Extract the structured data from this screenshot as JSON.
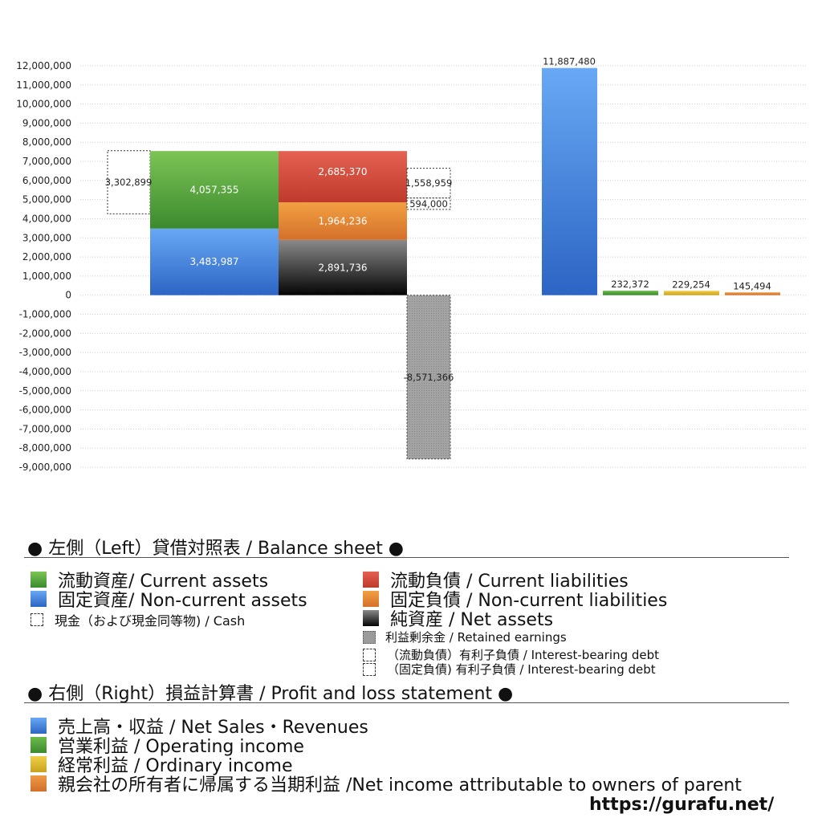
{
  "chart_data": {
    "type": "bar",
    "y_axis": {
      "min": -9000000,
      "max": 12000000,
      "step": 1000000,
      "ticks": [
        "12,000,000",
        "11,000,000",
        "10,000,000",
        "9,000,000",
        "8,000,000",
        "7,000,000",
        "6,000,000",
        "5,000,000",
        "4,000,000",
        "3,000,000",
        "2,000,000",
        "1,000,000",
        "0",
        "-1,000,000",
        "-2,000,000",
        "-3,000,000",
        "-4,000,000",
        "-5,000,000",
        "-6,000,000",
        "-7,000,000",
        "-8,000,000",
        "-9,000,000"
      ]
    },
    "grid": true,
    "balance_sheet": {
      "cash": {
        "value": 3302899,
        "label": "3,302,899",
        "base": 4254443
      },
      "current_assets": {
        "value": 4057355,
        "label": "4,057,355",
        "base": 3483987
      },
      "non_current_assets": {
        "value": 3483987,
        "label": "3,483,987",
        "base": 0
      },
      "current_liabilities": {
        "value": 2685370,
        "label": "2,685,370",
        "base": 4855972
      },
      "non_current_liabilities": {
        "value": 1964236,
        "label": "1,964,236",
        "base": 2891736
      },
      "net_assets": {
        "value": 2891736,
        "label": "2,891,736",
        "base": 0
      },
      "ib_debt_current": {
        "value": 1558959,
        "label": "1,558,959",
        "base": 5080000
      },
      "ib_debt_noncurrent": {
        "value": 594000,
        "label": "594,000",
        "base": 4486000
      },
      "retained_earnings": {
        "value": -8571366,
        "label": "-8,571,366",
        "base": 0
      }
    },
    "profit_loss": [
      {
        "key": "net_sales",
        "value": 11887480,
        "label": "11,887,480",
        "color": "#3f7fd8"
      },
      {
        "key": "operating_income",
        "value": 232372,
        "label": "232,372",
        "color": "#4e9e3c"
      },
      {
        "key": "ordinary_income",
        "value": 229254,
        "label": "229,254",
        "color": "#d9b42a"
      },
      {
        "key": "net_income_parent",
        "value": 145494,
        "label": "145,494",
        "color": "#dd7a2c"
      }
    ]
  },
  "colors": {
    "current_assets": "#4f9e3d",
    "non_current_assets": "#3f7fd8",
    "current_liabilities": "#cf4a37",
    "non_current_liabilities": "#e0852f",
    "net_assets": "#2b2b2b",
    "retained_earnings": "#999999",
    "net_sales": "#3f7fd8",
    "operating_income": "#4e9e3c",
    "ordinary_income": "#d9b42a",
    "net_income_parent": "#dd7a2c"
  },
  "legend": {
    "left_title": "● 左側（Left）貸借対照表 / Balance sheet ●",
    "left_items": {
      "current_assets": "流動資産/ Current assets",
      "non_current_assets": "固定資産/ Non-current assets",
      "cash": "現金（および現金同等物) / Cash",
      "current_liabilities": "流動負債 /  Current liabilities",
      "non_current_liabilities": "固定負債 / Non-current liabilities",
      "net_assets": "純資産 / Net assets",
      "retained_earnings": "利益剰余金 / Retained earnings",
      "ib_debt_current": "（流動負債）有利子負債 / Interest-bearing debt",
      "ib_debt_noncurrent": "（固定負債) 有利子負債 / Interest-bearing debt"
    },
    "right_title": "● 右側（Right）損益計算書 / Profit and loss statement ●",
    "right_items": {
      "net_sales": "売上高・収益 / Net Sales・Revenues",
      "operating_income": "営業利益 / Operating income",
      "ordinary_income": "経常利益 / Ordinary income",
      "net_income_parent": "親会社の所有者に帰属する当期利益 /Net income attributable to owners of parent"
    }
  },
  "url": "https://gurafu.net/"
}
